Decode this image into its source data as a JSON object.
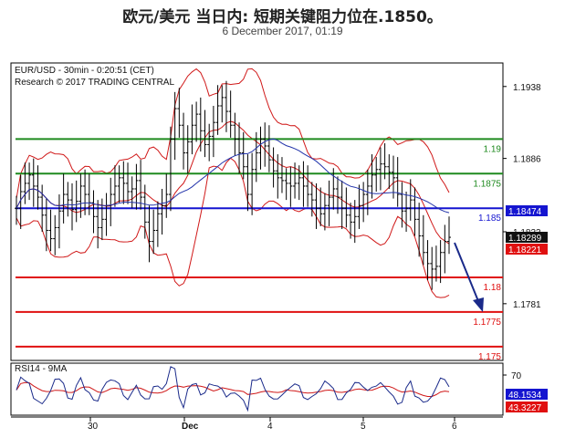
{
  "header": {
    "title": "欧元/美元 当日内: 短期关键阻力位在.1850。",
    "subtitle": "6 December 2017, 01:19"
  },
  "chart_data": [
    {
      "type": "candlestick",
      "symbol_line": "EUR/USD - 30min - 0:20:51 (CET)",
      "source_line": "Research © 2017 TRADING CENTRAL",
      "x_tick_labels": [
        "30",
        "Dec",
        "4",
        "5",
        "6"
      ],
      "ylim": [
        1.174,
        1.1955
      ],
      "y_ticks": [
        {
          "value": 1.1938,
          "label": "1.1938"
        },
        {
          "value": 1.1886,
          "label": "1.1886"
        },
        {
          "value": 1.1833,
          "label": "1.1833"
        },
        {
          "value": 1.1781,
          "label": "1.1781"
        }
      ],
      "levels": [
        {
          "value": 1.19,
          "label": "1.19",
          "color": "#1f8a1f"
        },
        {
          "value": 1.1875,
          "label": "1.1875",
          "color": "#1f8a1f"
        },
        {
          "value": 1.185,
          "label": "1.185",
          "color": "#1515d0"
        },
        {
          "value": 1.18,
          "label": "1.18",
          "color": "#e01010"
        },
        {
          "value": 1.1775,
          "label": "1.1775",
          "color": "#e01010"
        },
        {
          "value": 1.175,
          "label": "1.175",
          "color": "#e01010"
        }
      ],
      "price_tags": [
        {
          "label": "1.18474",
          "value": 1.18474,
          "bg": "#1515d0",
          "fg": "#ffffff"
        },
        {
          "label": "1.18289",
          "value": 1.1829,
          "bg": "#111111",
          "fg": "#ffffff"
        },
        {
          "label": "1.18221",
          "value": 1.18221,
          "bg": "#e01010",
          "fg": "#ffffff"
        }
      ],
      "close_series": [
        1.185,
        1.1862,
        1.1868,
        1.1874,
        1.1866,
        1.1858,
        1.1845,
        1.1834,
        1.1828,
        1.1836,
        1.1848,
        1.186,
        1.1856,
        1.1849,
        1.1855,
        1.1866,
        1.186,
        1.1854,
        1.1844,
        1.1836,
        1.1842,
        1.1852,
        1.186,
        1.1866,
        1.1872,
        1.1868,
        1.1862,
        1.1864,
        1.187,
        1.1858,
        1.184,
        1.1826,
        1.1834,
        1.1846,
        1.1852,
        1.186,
        1.19,
        1.1922,
        1.191,
        1.189,
        1.1898,
        1.191,
        1.1918,
        1.1906,
        1.1896,
        1.1902,
        1.1912,
        1.1924,
        1.193,
        1.192,
        1.191,
        1.19,
        1.189,
        1.188,
        1.186,
        1.1878,
        1.189,
        1.19,
        1.1895,
        1.1885,
        1.1877,
        1.1872,
        1.187,
        1.1868,
        1.1866,
        1.1868,
        1.1872,
        1.1866,
        1.186,
        1.1856,
        1.185,
        1.1846,
        1.1852,
        1.1858,
        1.1864,
        1.1858,
        1.185,
        1.1845,
        1.184,
        1.1844,
        1.1852,
        1.186,
        1.1866,
        1.1874,
        1.1878,
        1.1882,
        1.188,
        1.1876,
        1.1872,
        1.186,
        1.1848,
        1.185,
        1.1856,
        1.1842,
        1.183,
        1.1818,
        1.181,
        1.1806,
        1.1808,
        1.1818,
        1.1826,
        1.1829
      ],
      "rsi_panel": {
        "label": "RSI14 - 9MA",
        "y_tick_label": "70",
        "tags": [
          {
            "label": "48.1534",
            "bg": "#1515d0",
            "fg": "#ffffff"
          },
          {
            "label": "43.3227",
            "bg": "#e01010",
            "fg": "#ffffff"
          }
        ]
      }
    }
  ]
}
